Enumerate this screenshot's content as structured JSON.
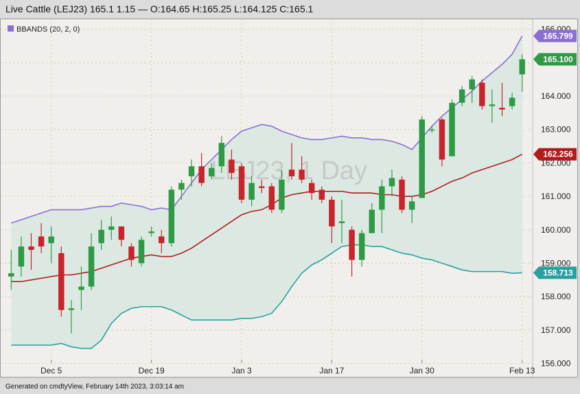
{
  "header": {
    "title": "Live Cattle (LEJ23) 165.1 1.15 — O:164.65 H:165.25 L:164.125 C:165.1"
  },
  "footer": {
    "text": "Generated on cmdtyView, February 14th 2023, 3:03:14 am"
  },
  "legend": {
    "label": "BBANDS (20, 2, 0)",
    "swatch_color": "#8a6fd1"
  },
  "watermark": "LEJ23, 1 Day",
  "colors": {
    "up": "#2f9a45",
    "down": "#c8242b",
    "upper_band": "#8a6fd1",
    "middle_band": "#b01c1c",
    "lower_band": "#2a9fa0",
    "band_fill": "#d8e8e2"
  },
  "chart_data": {
    "type": "candlestick",
    "ylim": [
      155.6,
      166.3
    ],
    "y_ticks": [
      "156.000",
      "157.000",
      "158.000",
      "159.000",
      "160.000",
      "161.000",
      "162.000",
      "163.000",
      "164.000",
      "165.000",
      "166.000"
    ],
    "x_tick_labels": [
      {
        "label": "Dec 5",
        "index": 4
      },
      {
        "label": "Dec 19",
        "index": 14
      },
      {
        "label": "Jan 3",
        "index": 23
      },
      {
        "label": "Jan 17",
        "index": 32
      },
      {
        "label": "Jan 30",
        "index": 41
      },
      {
        "label": "Feb 13",
        "index": 51
      }
    ],
    "candles": [
      {
        "o": 158.6,
        "h": 159.4,
        "l": 158.2,
        "c": 158.7
      },
      {
        "o": 158.9,
        "h": 159.8,
        "l": 158.6,
        "c": 159.5
      },
      {
        "o": 159.5,
        "h": 159.9,
        "l": 158.8,
        "c": 159.4
      },
      {
        "o": 159.8,
        "h": 160.2,
        "l": 159.3,
        "c": 159.5
      },
      {
        "o": 159.6,
        "h": 160.1,
        "l": 159.0,
        "c": 159.8
      },
      {
        "o": 159.3,
        "h": 159.5,
        "l": 157.4,
        "c": 157.6
      },
      {
        "o": 157.6,
        "h": 157.9,
        "l": 156.9,
        "c": 157.65
      },
      {
        "o": 158.2,
        "h": 158.9,
        "l": 157.6,
        "c": 158.3
      },
      {
        "o": 158.3,
        "h": 159.9,
        "l": 158.2,
        "c": 159.5
      },
      {
        "o": 159.6,
        "h": 160.3,
        "l": 159.4,
        "c": 160.0
      },
      {
        "o": 160.0,
        "h": 160.4,
        "l": 159.7,
        "c": 160.1
      },
      {
        "o": 160.1,
        "h": 160.1,
        "l": 159.5,
        "c": 159.7
      },
      {
        "o": 159.5,
        "h": 159.6,
        "l": 158.9,
        "c": 159.1
      },
      {
        "o": 159.0,
        "h": 159.8,
        "l": 158.9,
        "c": 159.7
      },
      {
        "o": 159.9,
        "h": 160.1,
        "l": 159.8,
        "c": 159.95
      },
      {
        "o": 159.8,
        "h": 160.0,
        "l": 159.3,
        "c": 159.6
      },
      {
        "o": 159.6,
        "h": 161.3,
        "l": 159.5,
        "c": 161.2
      },
      {
        "o": 161.2,
        "h": 161.5,
        "l": 160.9,
        "c": 161.4
      },
      {
        "o": 161.6,
        "h": 162.1,
        "l": 161.3,
        "c": 161.9
      },
      {
        "o": 161.9,
        "h": 162.3,
        "l": 161.3,
        "c": 161.4
      },
      {
        "o": 161.6,
        "h": 162.0,
        "l": 161.5,
        "c": 161.85
      },
      {
        "o": 161.9,
        "h": 162.8,
        "l": 161.7,
        "c": 162.6
      },
      {
        "o": 162.1,
        "h": 162.4,
        "l": 161.5,
        "c": 161.7
      },
      {
        "o": 161.9,
        "h": 162.0,
        "l": 160.8,
        "c": 160.9
      },
      {
        "o": 160.9,
        "h": 161.6,
        "l": 160.7,
        "c": 161.4
      },
      {
        "o": 161.3,
        "h": 161.5,
        "l": 161.1,
        "c": 161.25
      },
      {
        "o": 161.3,
        "h": 161.4,
        "l": 160.5,
        "c": 160.6
      },
      {
        "o": 160.6,
        "h": 161.8,
        "l": 160.5,
        "c": 161.5
      },
      {
        "o": 161.8,
        "h": 162.6,
        "l": 161.5,
        "c": 161.6
      },
      {
        "o": 161.8,
        "h": 162.2,
        "l": 161.4,
        "c": 161.5
      },
      {
        "o": 161.4,
        "h": 161.5,
        "l": 160.9,
        "c": 161.1
      },
      {
        "o": 161.2,
        "h": 161.3,
        "l": 160.8,
        "c": 160.9
      },
      {
        "o": 160.9,
        "h": 161.0,
        "l": 159.6,
        "c": 160.1
      },
      {
        "o": 160.2,
        "h": 160.9,
        "l": 159.6,
        "c": 160.25
      },
      {
        "o": 160.0,
        "h": 160.1,
        "l": 158.6,
        "c": 159.1
      },
      {
        "o": 159.1,
        "h": 160.0,
        "l": 158.9,
        "c": 159.9
      },
      {
        "o": 159.9,
        "h": 160.8,
        "l": 159.9,
        "c": 160.6
      },
      {
        "o": 160.6,
        "h": 161.5,
        "l": 159.9,
        "c": 161.3
      },
      {
        "o": 161.3,
        "h": 161.8,
        "l": 161.0,
        "c": 161.55
      },
      {
        "o": 161.5,
        "h": 161.6,
        "l": 160.5,
        "c": 160.6
      },
      {
        "o": 160.6,
        "h": 161.0,
        "l": 160.2,
        "c": 160.85
      },
      {
        "o": 160.95,
        "h": 163.4,
        "l": 160.95,
        "c": 163.3
      },
      {
        "o": 163.0,
        "h": 163.1,
        "l": 162.9,
        "c": 163.0
      },
      {
        "o": 163.3,
        "h": 163.35,
        "l": 161.9,
        "c": 162.1
      },
      {
        "o": 162.2,
        "h": 163.9,
        "l": 162.2,
        "c": 163.8
      },
      {
        "o": 163.8,
        "h": 164.3,
        "l": 163.7,
        "c": 164.2
      },
      {
        "o": 164.2,
        "h": 164.6,
        "l": 163.8,
        "c": 164.5
      },
      {
        "o": 164.4,
        "h": 164.5,
        "l": 163.6,
        "c": 163.7
      },
      {
        "o": 163.7,
        "h": 164.2,
        "l": 163.2,
        "c": 163.75
      },
      {
        "o": 163.65,
        "h": 164.4,
        "l": 163.4,
        "c": 163.6
      },
      {
        "o": 163.7,
        "h": 164.1,
        "l": 163.6,
        "c": 163.95
      },
      {
        "o": 164.65,
        "h": 165.25,
        "l": 164.125,
        "c": 165.1
      }
    ],
    "upper_band": [
      160.2,
      160.3,
      160.4,
      160.5,
      160.6,
      160.6,
      160.6,
      160.6,
      160.65,
      160.7,
      160.7,
      160.8,
      160.75,
      160.7,
      160.6,
      160.65,
      160.6,
      161.0,
      161.4,
      161.8,
      162.1,
      162.4,
      162.7,
      162.95,
      163.05,
      163.15,
      163.1,
      162.95,
      162.85,
      162.75,
      162.7,
      162.7,
      162.75,
      162.8,
      162.75,
      162.75,
      162.7,
      162.7,
      162.65,
      162.55,
      162.4,
      162.75,
      163.1,
      163.4,
      163.65,
      163.9,
      164.15,
      164.45,
      164.7,
      164.95,
      165.25,
      165.8
    ],
    "middle_band": [
      158.45,
      158.45,
      158.5,
      158.55,
      158.6,
      158.65,
      158.65,
      158.7,
      158.75,
      158.85,
      158.95,
      159.05,
      159.15,
      159.2,
      159.25,
      159.2,
      159.2,
      159.3,
      159.45,
      159.65,
      159.85,
      160.05,
      160.25,
      160.45,
      160.55,
      160.6,
      160.75,
      160.95,
      161.05,
      161.1,
      161.15,
      161.15,
      161.15,
      161.15,
      161.1,
      161.1,
      161.1,
      161.05,
      161.05,
      161.0,
      161.0,
      161.05,
      161.15,
      161.3,
      161.45,
      161.55,
      161.7,
      161.8,
      161.9,
      162.0,
      162.1,
      162.26
    ],
    "lower_band": [
      156.55,
      156.55,
      156.55,
      156.55,
      156.55,
      156.6,
      156.5,
      156.45,
      156.45,
      156.7,
      157.2,
      157.5,
      157.65,
      157.7,
      157.7,
      157.7,
      157.6,
      157.45,
      157.3,
      157.3,
      157.3,
      157.3,
      157.3,
      157.35,
      157.35,
      157.4,
      157.5,
      157.85,
      158.3,
      158.7,
      158.95,
      159.1,
      159.3,
      159.5,
      159.55,
      159.55,
      159.5,
      159.5,
      159.4,
      159.3,
      159.25,
      159.15,
      159.1,
      159.0,
      158.9,
      158.8,
      158.75,
      158.75,
      158.75,
      158.75,
      158.7,
      158.713
    ],
    "last_values": {
      "upper": "165.799",
      "close": "165.100",
      "middle": "162.256",
      "lower": "158.713"
    }
  }
}
